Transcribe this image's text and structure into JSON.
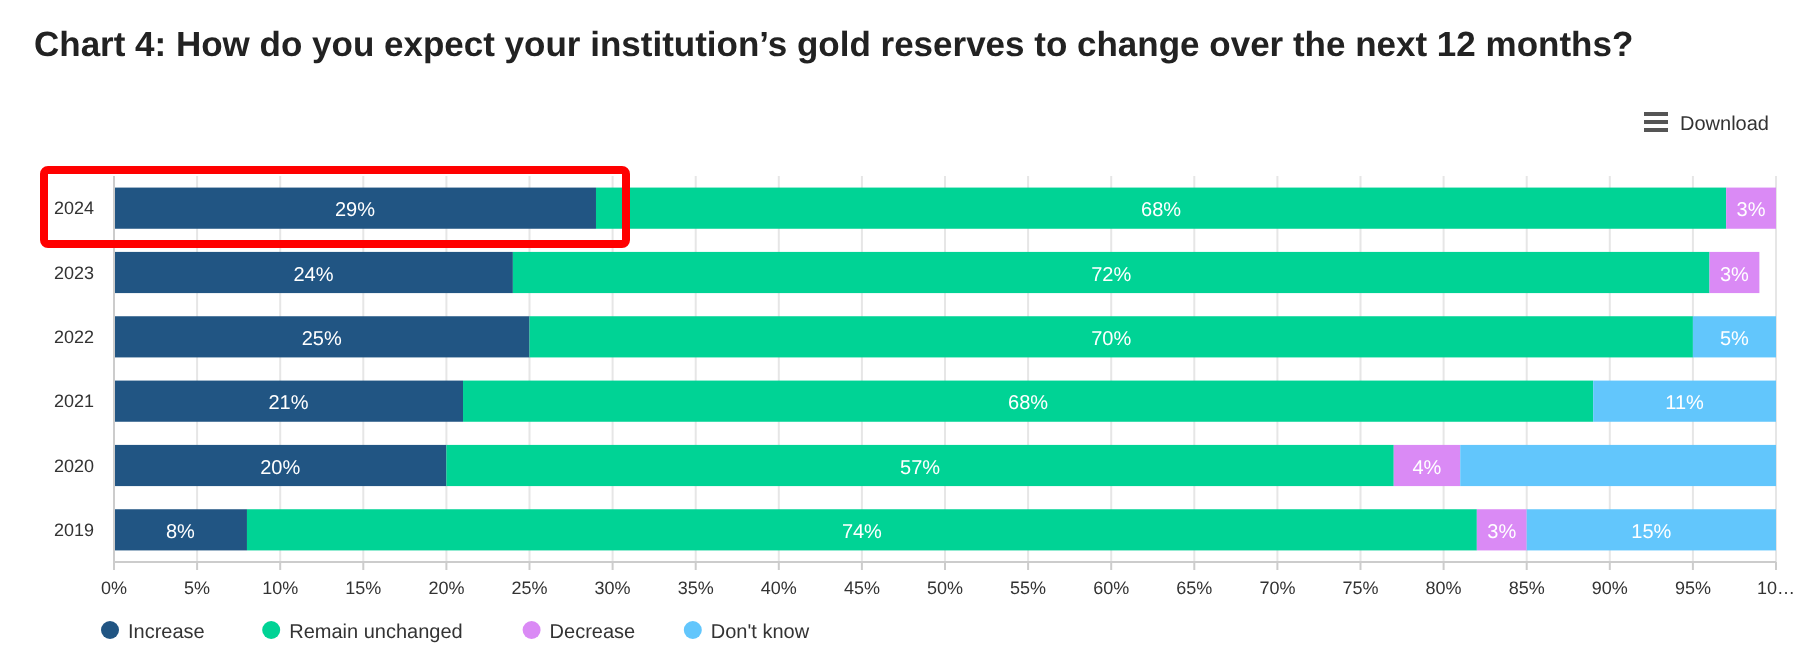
{
  "chart_data": {
    "type": "bar",
    "orientation": "horizontal",
    "stacked": true,
    "title": "Chart 4: How do you expect your institution’s gold reserves to change over the next 12 months?",
    "categories": [
      "2024",
      "2023",
      "2022",
      "2021",
      "2020",
      "2019"
    ],
    "series": [
      {
        "name": "Increase",
        "color": "#215583",
        "values": [
          29,
          24,
          25,
          21,
          20,
          8
        ],
        "value_labels": [
          "29%",
          "24%",
          "25%",
          "21%",
          "20%",
          "8%"
        ]
      },
      {
        "name": "Remain unchanged",
        "color": "#00d395",
        "values": [
          68,
          72,
          70,
          68,
          57,
          74
        ],
        "value_labels": [
          "68%",
          "72%",
          "70%",
          "68%",
          "57%",
          "74%"
        ]
      },
      {
        "name": "Decrease",
        "color": "#da8af5",
        "values": [
          3,
          3,
          null,
          null,
          4,
          3
        ],
        "value_labels": [
          "3%",
          "3%",
          null,
          null,
          "4%",
          "3%"
        ]
      },
      {
        "name": "Don't know",
        "color": "#62c6fc",
        "values": [
          null,
          null,
          5,
          11,
          19,
          15
        ],
        "value_labels": [
          null,
          null,
          "5%",
          "11%",
          null,
          "15%"
        ]
      }
    ],
    "xlim": [
      0,
      100
    ],
    "xticks": [
      {
        "value": 0,
        "label": "0%"
      },
      {
        "value": 5,
        "label": "5%"
      },
      {
        "value": 10,
        "label": "10%"
      },
      {
        "value": 15,
        "label": "15%"
      },
      {
        "value": 20,
        "label": "20%"
      },
      {
        "value": 25,
        "label": "25%"
      },
      {
        "value": 30,
        "label": "30%"
      },
      {
        "value": 35,
        "label": "35%"
      },
      {
        "value": 40,
        "label": "40%"
      },
      {
        "value": 45,
        "label": "45%"
      },
      {
        "value": 50,
        "label": "50%"
      },
      {
        "value": 55,
        "label": "55%"
      },
      {
        "value": 60,
        "label": "60%"
      },
      {
        "value": 65,
        "label": "65%"
      },
      {
        "value": 70,
        "label": "70%"
      },
      {
        "value": 75,
        "label": "75%"
      },
      {
        "value": 80,
        "label": "80%"
      },
      {
        "value": 85,
        "label": "85%"
      },
      {
        "value": 90,
        "label": "90%"
      },
      {
        "value": 95,
        "label": "95%"
      },
      {
        "value": 100,
        "label": "10…"
      }
    ],
    "grid": "x",
    "legend": "bottom",
    "annotations": [
      "Download"
    ]
  }
}
